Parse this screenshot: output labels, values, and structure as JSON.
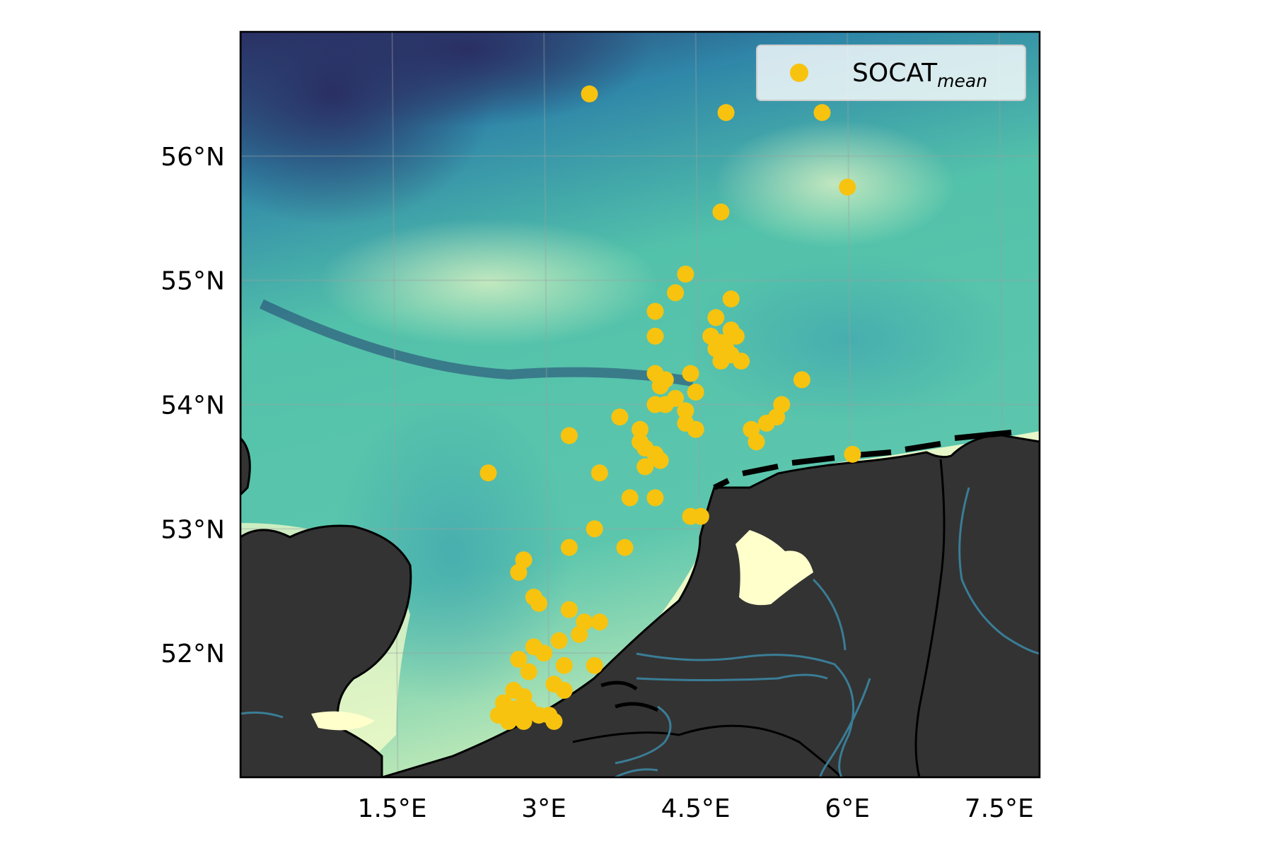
{
  "map": {
    "extent": {
      "lon": [
        0.0,
        7.9
      ],
      "lat": [
        51.0,
        57.0
      ]
    },
    "lon_ticks": [
      {
        "value": 1.5,
        "label": "1.5°E"
      },
      {
        "value": 3.0,
        "label": "3°E"
      },
      {
        "value": 4.5,
        "label": "4.5°E"
      },
      {
        "value": 6.0,
        "label": "6°E"
      },
      {
        "value": 7.5,
        "label": "7.5°E"
      }
    ],
    "lat_ticks": [
      {
        "value": 52,
        "label": "52°N"
      },
      {
        "value": 53,
        "label": "53°N"
      },
      {
        "value": 54,
        "label": "54°N"
      },
      {
        "value": 55,
        "label": "55°N"
      },
      {
        "value": 56,
        "label": "56°N"
      }
    ],
    "colors": {
      "land": "#333333",
      "coast": "#000000",
      "river": "#3a7d96",
      "deep": "#2a2f63",
      "mid": "#2f86a8",
      "shallow": "#53c2aa",
      "very_shallow": "#ffffcc",
      "points": "#f7c30f"
    },
    "legend": {
      "placement": "top-right",
      "label": "SOCAT",
      "label_sub": "mean"
    },
    "points": [
      [
        3.45,
        56.5
      ],
      [
        4.8,
        56.35
      ],
      [
        5.75,
        56.35
      ],
      [
        6.0,
        55.75
      ],
      [
        4.75,
        55.55
      ],
      [
        4.4,
        55.05
      ],
      [
        4.3,
        54.9
      ],
      [
        4.85,
        54.85
      ],
      [
        4.1,
        54.75
      ],
      [
        4.7,
        54.7
      ],
      [
        4.85,
        54.6
      ],
      [
        4.9,
        54.55
      ],
      [
        4.65,
        54.55
      ],
      [
        4.75,
        54.5
      ],
      [
        4.8,
        54.45
      ],
      [
        4.7,
        54.45
      ],
      [
        4.85,
        54.4
      ],
      [
        4.75,
        54.35
      ],
      [
        4.95,
        54.35
      ],
      [
        4.1,
        54.55
      ],
      [
        4.1,
        54.25
      ],
      [
        4.2,
        54.2
      ],
      [
        4.45,
        54.25
      ],
      [
        4.15,
        54.15
      ],
      [
        4.5,
        54.1
      ],
      [
        5.55,
        54.2
      ],
      [
        4.1,
        54.0
      ],
      [
        4.2,
        54.0
      ],
      [
        4.3,
        54.05
      ],
      [
        4.4,
        53.95
      ],
      [
        4.4,
        53.85
      ],
      [
        4.5,
        53.8
      ],
      [
        3.75,
        53.9
      ],
      [
        5.35,
        54.0
      ],
      [
        5.3,
        53.9
      ],
      [
        5.2,
        53.85
      ],
      [
        5.05,
        53.8
      ],
      [
        5.1,
        53.7
      ],
      [
        3.25,
        53.75
      ],
      [
        3.95,
        53.8
      ],
      [
        3.95,
        53.7
      ],
      [
        4.0,
        53.65
      ],
      [
        4.1,
        53.6
      ],
      [
        4.15,
        53.55
      ],
      [
        4.0,
        53.5
      ],
      [
        6.05,
        53.6
      ],
      [
        2.45,
        53.45
      ],
      [
        3.55,
        53.45
      ],
      [
        3.85,
        53.25
      ],
      [
        4.1,
        53.25
      ],
      [
        4.45,
        53.1
      ],
      [
        4.55,
        53.1
      ],
      [
        3.5,
        53.0
      ],
      [
        3.25,
        52.85
      ],
      [
        3.8,
        52.85
      ],
      [
        2.8,
        52.75
      ],
      [
        2.75,
        52.65
      ],
      [
        2.9,
        52.45
      ],
      [
        2.95,
        52.4
      ],
      [
        3.25,
        52.35
      ],
      [
        3.4,
        52.25
      ],
      [
        3.55,
        52.25
      ],
      [
        3.35,
        52.15
      ],
      [
        3.15,
        52.1
      ],
      [
        2.9,
        52.05
      ],
      [
        3.0,
        52.0
      ],
      [
        2.75,
        51.95
      ],
      [
        3.2,
        51.9
      ],
      [
        3.5,
        51.9
      ],
      [
        2.85,
        51.85
      ],
      [
        3.1,
        51.75
      ],
      [
        3.2,
        51.7
      ],
      [
        2.7,
        51.7
      ],
      [
        2.8,
        51.65
      ],
      [
        2.6,
        51.6
      ],
      [
        2.7,
        51.55
      ],
      [
        2.85,
        51.55
      ],
      [
        2.95,
        51.5
      ],
      [
        3.05,
        51.5
      ],
      [
        2.8,
        51.45
      ],
      [
        2.65,
        51.45
      ],
      [
        2.55,
        51.5
      ],
      [
        3.1,
        51.45
      ]
    ]
  }
}
